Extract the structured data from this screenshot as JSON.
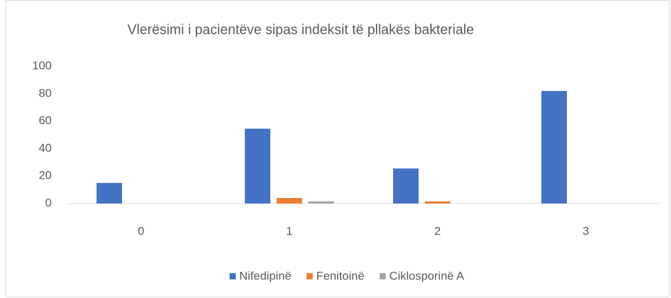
{
  "chart_data": {
    "type": "bar",
    "title": "Vlerësimi i pacientëve sipas indeksit të pllakës bakteriale",
    "categories": [
      "0",
      "1",
      "2",
      "3"
    ],
    "series": [
      {
        "name": "Nifedipinë",
        "color": "#4472c4",
        "values": [
          15,
          54.5,
          25.5,
          82
        ]
      },
      {
        "name": "Fenitoinë",
        "color": "#ed7d31",
        "values": [
          0,
          4,
          1.5,
          0
        ]
      },
      {
        "name": "Ciklosporinë A",
        "color": "#a5a5a5",
        "values": [
          0,
          1.5,
          0,
          0
        ]
      }
    ],
    "ylim": [
      0,
      100
    ],
    "yticks": [
      0,
      20,
      40,
      60,
      80,
      100
    ],
    "grid": false,
    "legend": "bottom"
  }
}
